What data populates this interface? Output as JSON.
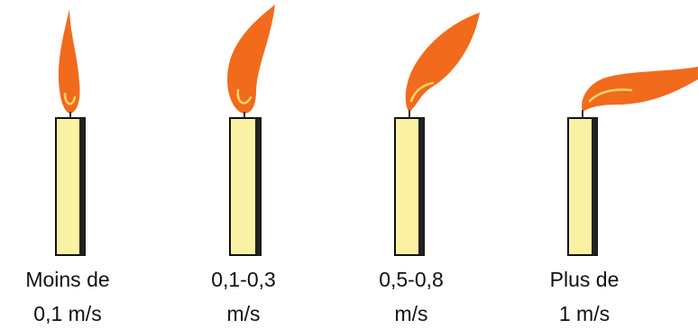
{
  "candles": [
    {
      "label": [
        "Moins de",
        "0,1 m/s"
      ]
    },
    {
      "label": [
        "0,1-0,3",
        "m/s"
      ]
    },
    {
      "label": [
        "0,5-0,8",
        "m/s"
      ]
    },
    {
      "label": [
        "Plus de",
        "1 m/s"
      ]
    }
  ]
}
